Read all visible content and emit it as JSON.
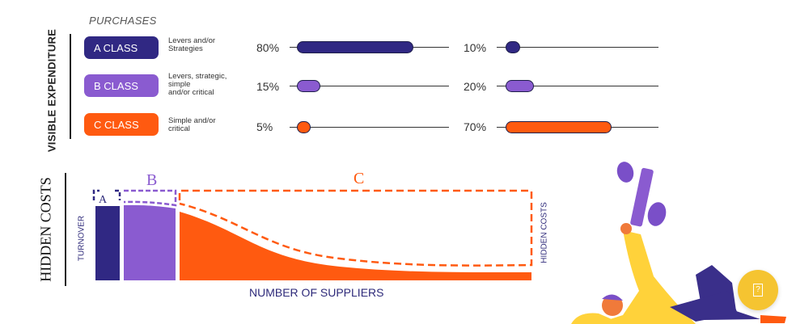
{
  "purchases_label": "PURCHASES",
  "visible_expenditure_label": "VISIBLE EXPENDITURE",
  "classes": [
    {
      "name": "A CLASS",
      "desc_lines": [
        "Levers and/or",
        "Strategies"
      ],
      "left_pct": "80%",
      "left_value": 80,
      "right_pct": "10%",
      "right_value": 10,
      "color": "#302883"
    },
    {
      "name": "B CLASS",
      "desc_lines": [
        "Levers, strategic,",
        "simple",
        "and/or critical"
      ],
      "left_pct": "15%",
      "left_value": 15,
      "right_pct": "20%",
      "right_value": 20,
      "color": "#8a5bd0"
    },
    {
      "name": "C CLASS",
      "desc_lines": [
        "Simple and/or",
        "critical"
      ],
      "left_pct": "5%",
      "left_value": 5,
      "right_pct": "70%",
      "right_value": 70,
      "color": "#ff5a10"
    }
  ],
  "hidden_costs_label": "HIDDEN COSTS",
  "turnover_label": "TURNOVER",
  "hidden_costs_axis_label": "HIDDEN COSTS",
  "x_axis_label": "NUMBER OF SUPPLIERS",
  "segment_labels": {
    "a": "A",
    "b": "B",
    "c": "C"
  },
  "colors": {
    "a": "#302883",
    "b": "#8a5bd0",
    "c": "#ff5a10",
    "help": "#f5c431"
  },
  "help_button": {
    "icon": "help-icon",
    "glyph": "?"
  }
}
